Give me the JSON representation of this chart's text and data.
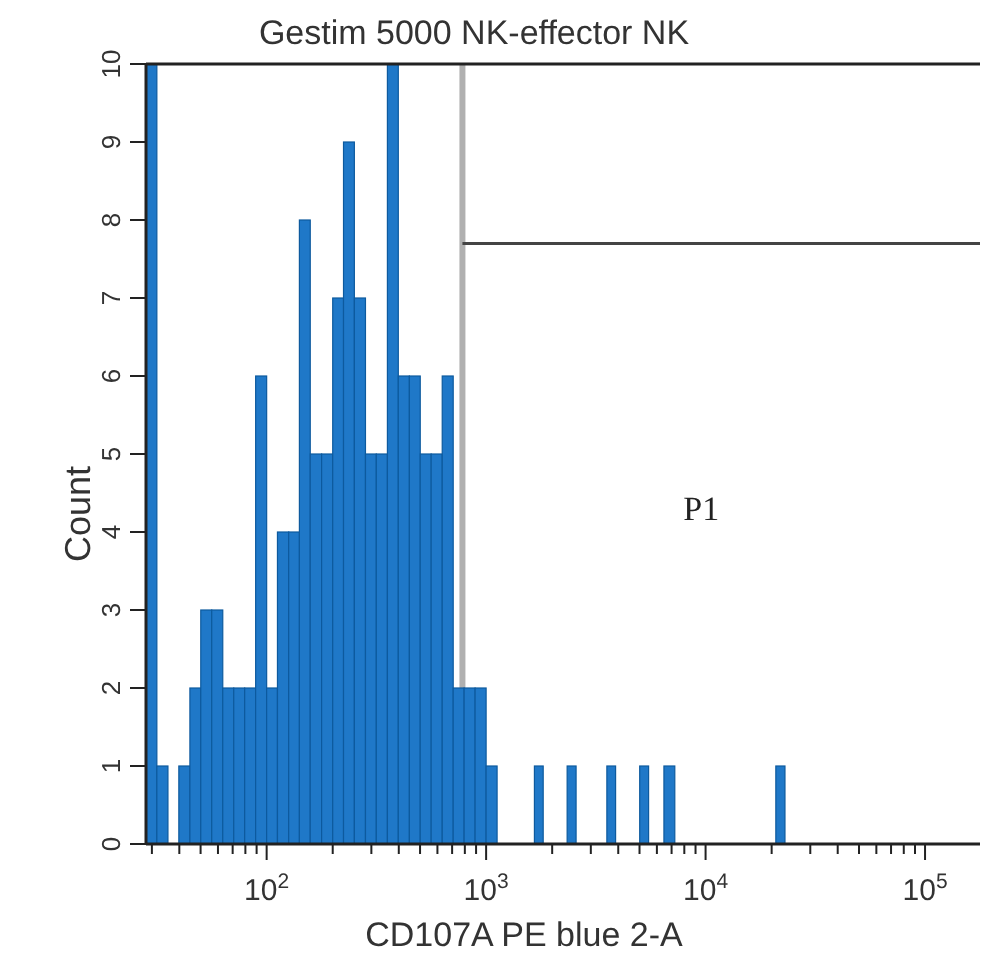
{
  "chart_data": {
    "type": "histogram",
    "title": "Gestim 5000 NK-effector NK",
    "xlabel": "CD107A PE blue 2-A",
    "ylabel": "Count",
    "log": "x",
    "color": "#1f78c8",
    "bins": [
      28.2,
      31.6,
      35.5,
      39.8,
      44.7,
      50.1,
      56.2,
      63.1,
      70.8,
      79.4,
      89.1,
      100,
      112,
      126,
      141,
      158,
      178,
      200,
      224,
      251,
      282,
      316,
      355,
      398,
      447,
      501,
      562,
      631,
      708,
      794,
      891,
      1000,
      1122,
      1660,
      1820,
      2340,
      2570,
      3550,
      3890,
      5010,
      5500,
      6460,
      7240,
      20900,
      23000
    ],
    "values": [
      10,
      1,
      0,
      1,
      2,
      3,
      3,
      2,
      2,
      2,
      6,
      2,
      4,
      4,
      8,
      5,
      5,
      7,
      9,
      7,
      5,
      5,
      10,
      6,
      6,
      5,
      5,
      6,
      2,
      2,
      2,
      1,
      0,
      1,
      0,
      1,
      0,
      1,
      0,
      1,
      0,
      1,
      0,
      1
    ],
    "xlim": [
      28.2,
      178000
    ],
    "ylim": [
      0,
      10
    ],
    "xticks": [
      {
        "value": 30,
        "label": null
      },
      {
        "value": 40,
        "label": null
      },
      {
        "value": 50,
        "label": null
      },
      {
        "value": 60,
        "label": null
      },
      {
        "value": 70,
        "label": null
      },
      {
        "value": 80,
        "label": null
      },
      {
        "value": 90,
        "label": null
      },
      {
        "value": 100,
        "label": "10$^{2}$"
      },
      {
        "value": 200,
        "label": null
      },
      {
        "value": 300,
        "label": null
      },
      {
        "value": 400,
        "label": null
      },
      {
        "value": 500,
        "label": null
      },
      {
        "value": 600,
        "label": null
      },
      {
        "value": 700,
        "label": null
      },
      {
        "value": 800,
        "label": null
      },
      {
        "value": 900,
        "label": null
      },
      {
        "value": 1000,
        "label": "10$^{3}$"
      },
      {
        "value": 2000,
        "label": null
      },
      {
        "value": 3000,
        "label": null
      },
      {
        "value": 4000,
        "label": null
      },
      {
        "value": 5000,
        "label": null
      },
      {
        "value": 6000,
        "label": null
      },
      {
        "value": 7000,
        "label": null
      },
      {
        "value": 8000,
        "label": null
      },
      {
        "value": 9000,
        "label": null
      },
      {
        "value": 10000,
        "label": "10$^{4}$"
      },
      {
        "value": 20000,
        "label": null
      },
      {
        "value": 30000,
        "label": null
      },
      {
        "value": 40000,
        "label": null
      },
      {
        "value": 50000,
        "label": null
      },
      {
        "value": 60000,
        "label": null
      },
      {
        "value": 70000,
        "label": null
      },
      {
        "value": 80000,
        "label": null
      },
      {
        "value": 90000,
        "label": null
      },
      {
        "value": 100000,
        "label": "10$^{5}$"
      }
    ],
    "yticks": [
      0,
      1,
      2,
      3,
      4,
      5,
      6,
      7,
      8,
      9,
      10
    ],
    "ref_lines": [
      {
        "axis": "x",
        "value": 780,
        "color": "#b0b0b0"
      },
      {
        "axis": "y",
        "value": 7.7,
        "color": "#444444"
      }
    ],
    "annotations": [
      "P1"
    ]
  }
}
